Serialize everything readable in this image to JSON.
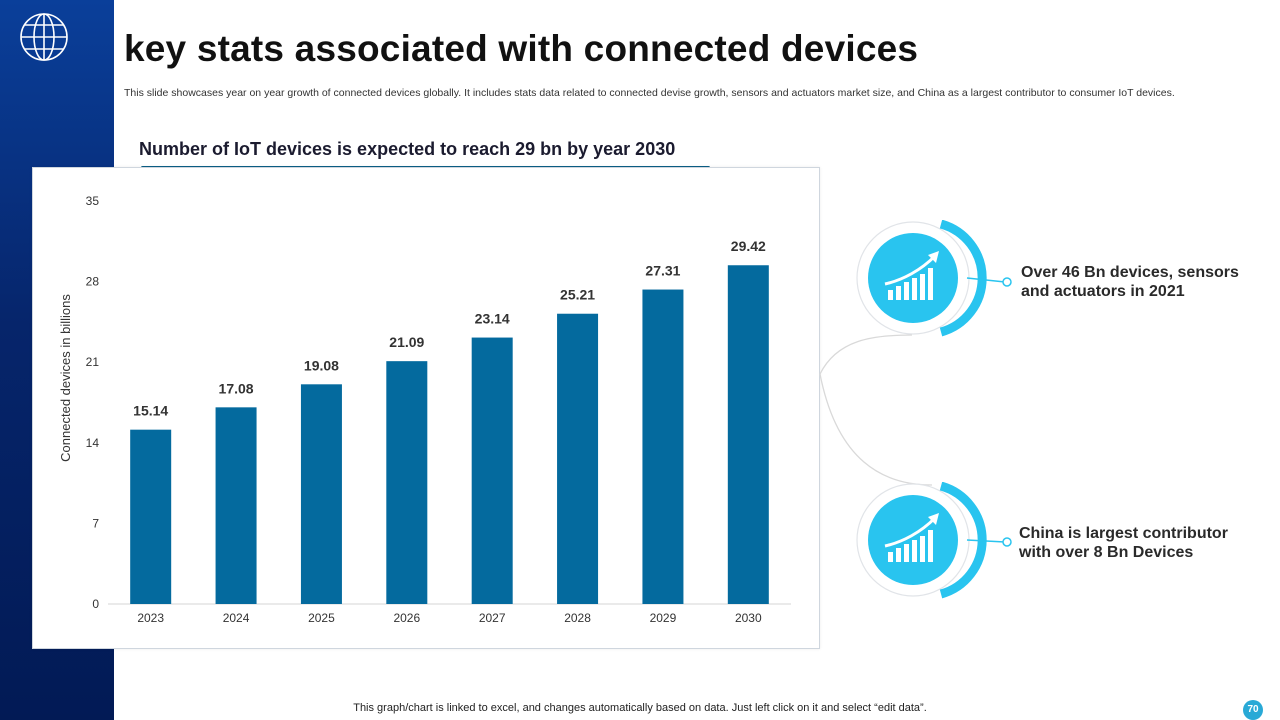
{
  "slide": {
    "title": "key stats associated with connected devices",
    "description": "This slide showcases year on year growth of connected devices globally. It includes stats data related to connected devise growth, sensors and actuators market size, and China as a largest contributor to consumer IoT devices.",
    "footer": "This graph/chart is linked to excel, and changes automatically based on data. Just left click on it and select “edit data”.",
    "page_number": "70"
  },
  "colors": {
    "bar": "#046a9e",
    "accent": "#29c4ef",
    "sidebar": "#06256b"
  },
  "chart_data": {
    "type": "bar",
    "title": "Number of IoT devices is expected to reach 29 bn by year 2030",
    "xlabel": "",
    "ylabel": "Connected devices in billions",
    "categories": [
      "2023",
      "2024",
      "2025",
      "2026",
      "2027",
      "2028",
      "2029",
      "2030"
    ],
    "values": [
      15.14,
      17.08,
      19.08,
      21.09,
      23.14,
      25.21,
      27.31,
      29.42
    ],
    "value_labels": [
      "15.14",
      "17.08",
      "19.08",
      "21.09",
      "23.14",
      "25.21",
      "27.31",
      "29.42"
    ],
    "yticks": [
      "0",
      "7",
      "14",
      "21",
      "28",
      "35"
    ],
    "ylim": [
      0,
      35
    ],
    "grid": false,
    "legend": "none"
  },
  "stats": [
    {
      "text": "Over 46 Bn devices, sensors and actuators in 2021",
      "icon": "growth-chart-icon"
    },
    {
      "text": "China is largest contributor with over 8 Bn Devices",
      "icon": "growth-chart-icon"
    }
  ]
}
